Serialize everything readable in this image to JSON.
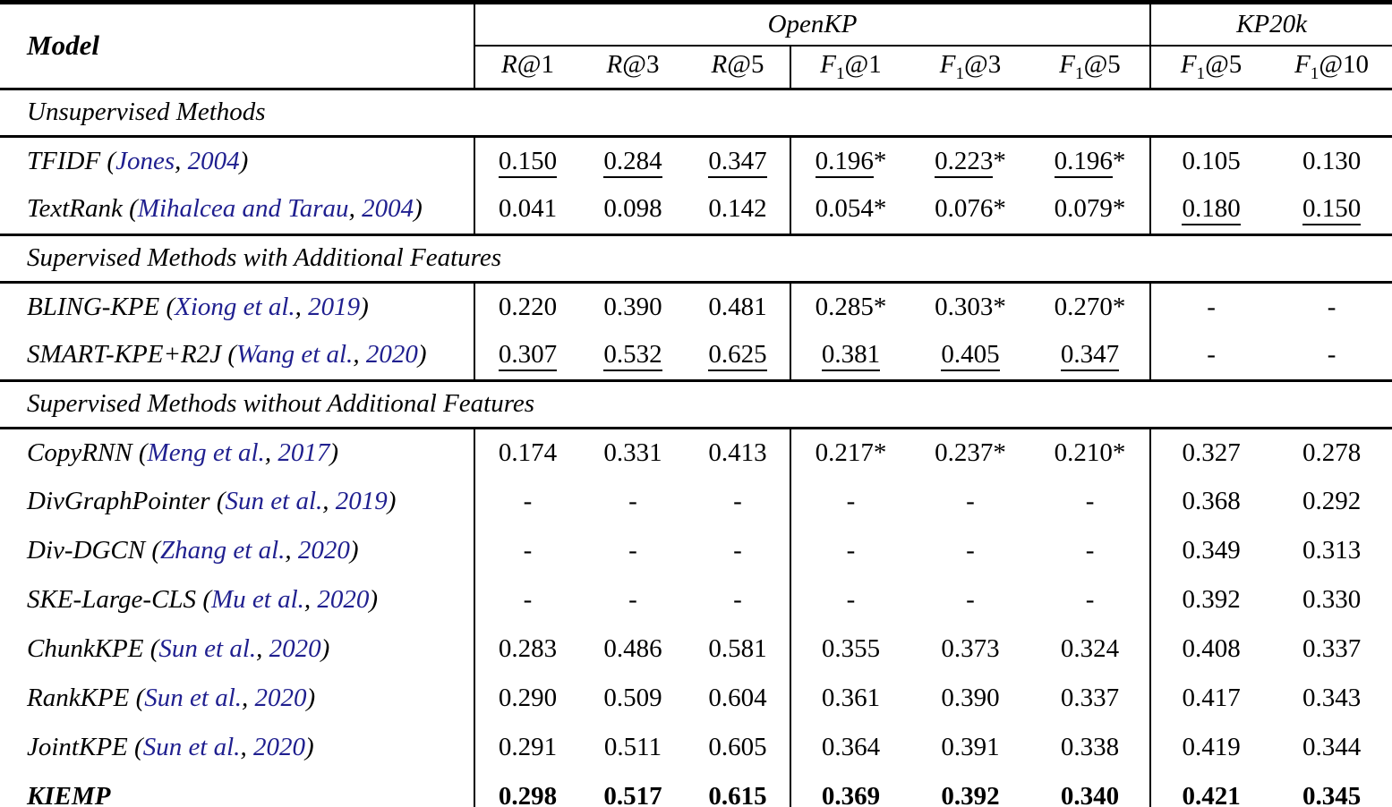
{
  "table": {
    "model_header": "Model",
    "groups": [
      {
        "label": "OpenKP"
      },
      {
        "label": "KP20k"
      }
    ],
    "columns": [
      {
        "letter": "R",
        "sub": "",
        "at": "@1"
      },
      {
        "letter": "R",
        "sub": "",
        "at": "@3"
      },
      {
        "letter": "R",
        "sub": "",
        "at": "@5"
      },
      {
        "letter": "F",
        "sub": "1",
        "at": "@1"
      },
      {
        "letter": "F",
        "sub": "1",
        "at": "@3"
      },
      {
        "letter": "F",
        "sub": "1",
        "at": "@5"
      },
      {
        "letter": "F",
        "sub": "1",
        "at": "@5"
      },
      {
        "letter": "F",
        "sub": "1",
        "at": "@10"
      }
    ],
    "colors": {
      "citation_link": "#1f1f8f",
      "text": "#000000",
      "rule": "#000000"
    },
    "sections": [
      {
        "title": "Unsupervised Methods",
        "rows": [
          {
            "name": "TFIDF",
            "cite_open": " (",
            "author": "Jones",
            "sep": ", ",
            "year": "2004",
            "cite_close": ")",
            "bold": false,
            "cells": [
              {
                "t": "0.150",
                "s": "",
                "u": true
              },
              {
                "t": "0.284",
                "s": "",
                "u": true
              },
              {
                "t": "0.347",
                "s": "",
                "u": true
              },
              {
                "t": "0.196",
                "s": "*",
                "u": true
              },
              {
                "t": "0.223",
                "s": "*",
                "u": true
              },
              {
                "t": "0.196",
                "s": "*",
                "u": true
              },
              {
                "t": "0.105",
                "s": "",
                "u": false
              },
              {
                "t": "0.130",
                "s": "",
                "u": false
              }
            ]
          },
          {
            "name": "TextRank",
            "cite_open": " (",
            "author": "Mihalcea and Tarau",
            "sep": ", ",
            "year": "2004",
            "cite_close": ")",
            "bold": false,
            "cells": [
              {
                "t": "0.041",
                "s": "",
                "u": false
              },
              {
                "t": "0.098",
                "s": "",
                "u": false
              },
              {
                "t": "0.142",
                "s": "",
                "u": false
              },
              {
                "t": "0.054",
                "s": "*",
                "u": false
              },
              {
                "t": "0.076",
                "s": "*",
                "u": false
              },
              {
                "t": "0.079",
                "s": "*",
                "u": false
              },
              {
                "t": "0.180",
                "s": "",
                "u": true
              },
              {
                "t": "0.150",
                "s": "",
                "u": true
              }
            ]
          }
        ]
      },
      {
        "title": "Supervised Methods with Additional Features",
        "rows": [
          {
            "name": "BLING-KPE",
            "cite_open": " (",
            "author": "Xiong et al.",
            "sep": ", ",
            "year": "2019",
            "cite_close": ")",
            "bold": false,
            "cells": [
              {
                "t": "0.220",
                "s": "",
                "u": false
              },
              {
                "t": "0.390",
                "s": "",
                "u": false
              },
              {
                "t": "0.481",
                "s": "",
                "u": false
              },
              {
                "t": "0.285",
                "s": "*",
                "u": false
              },
              {
                "t": "0.303",
                "s": "*",
                "u": false
              },
              {
                "t": "0.270",
                "s": "*",
                "u": false
              },
              {
                "t": "-",
                "s": "",
                "u": false
              },
              {
                "t": "-",
                "s": "",
                "u": false
              }
            ]
          },
          {
            "name": "SMART-KPE+R2J",
            "cite_open": " (",
            "author": "Wang et al.",
            "sep": ", ",
            "year": "2020",
            "cite_close": ")",
            "bold": false,
            "cells": [
              {
                "t": "0.307",
                "s": "",
                "u": true
              },
              {
                "t": "0.532",
                "s": "",
                "u": true
              },
              {
                "t": "0.625",
                "s": "",
                "u": true
              },
              {
                "t": "0.381",
                "s": "",
                "u": true
              },
              {
                "t": "0.405",
                "s": "",
                "u": true
              },
              {
                "t": "0.347",
                "s": "",
                "u": true
              },
              {
                "t": "-",
                "s": "",
                "u": false
              },
              {
                "t": "-",
                "s": "",
                "u": false
              }
            ]
          }
        ]
      },
      {
        "title": "Supervised Methods without Additional Features",
        "rows": [
          {
            "name": "CopyRNN",
            "cite_open": " (",
            "author": "Meng et al.",
            "sep": ", ",
            "year": "2017",
            "cite_close": ")",
            "bold": false,
            "cells": [
              {
                "t": "0.174",
                "s": "",
                "u": false
              },
              {
                "t": "0.331",
                "s": "",
                "u": false
              },
              {
                "t": "0.413",
                "s": "",
                "u": false
              },
              {
                "t": "0.217",
                "s": "*",
                "u": false
              },
              {
                "t": "0.237",
                "s": "*",
                "u": false
              },
              {
                "t": "0.210",
                "s": "*",
                "u": false
              },
              {
                "t": "0.327",
                "s": "",
                "u": false
              },
              {
                "t": "0.278",
                "s": "",
                "u": false
              }
            ]
          },
          {
            "name": "DivGraphPointer",
            "cite_open": " (",
            "author": "Sun et al.",
            "sep": ", ",
            "year": "2019",
            "cite_close": ")",
            "bold": false,
            "cells": [
              {
                "t": "-",
                "s": "",
                "u": false
              },
              {
                "t": "-",
                "s": "",
                "u": false
              },
              {
                "t": "-",
                "s": "",
                "u": false
              },
              {
                "t": "-",
                "s": "",
                "u": false
              },
              {
                "t": "-",
                "s": "",
                "u": false
              },
              {
                "t": "-",
                "s": "",
                "u": false
              },
              {
                "t": "0.368",
                "s": "",
                "u": false
              },
              {
                "t": "0.292",
                "s": "",
                "u": false
              }
            ]
          },
          {
            "name": "Div-DGCN",
            "cite_open": " (",
            "author": "Zhang et al.",
            "sep": ", ",
            "year": "2020",
            "cite_close": ")",
            "bold": false,
            "cells": [
              {
                "t": "-",
                "s": "",
                "u": false
              },
              {
                "t": "-",
                "s": "",
                "u": false
              },
              {
                "t": "-",
                "s": "",
                "u": false
              },
              {
                "t": "-",
                "s": "",
                "u": false
              },
              {
                "t": "-",
                "s": "",
                "u": false
              },
              {
                "t": "-",
                "s": "",
                "u": false
              },
              {
                "t": "0.349",
                "s": "",
                "u": false
              },
              {
                "t": "0.313",
                "s": "",
                "u": false
              }
            ]
          },
          {
            "name": "SKE-Large-CLS",
            "cite_open": " (",
            "author": "Mu et al.",
            "sep": ", ",
            "year": "2020",
            "cite_close": ")",
            "bold": false,
            "cells": [
              {
                "t": "-",
                "s": "",
                "u": false
              },
              {
                "t": "-",
                "s": "",
                "u": false
              },
              {
                "t": "-",
                "s": "",
                "u": false
              },
              {
                "t": "-",
                "s": "",
                "u": false
              },
              {
                "t": "-",
                "s": "",
                "u": false
              },
              {
                "t": "-",
                "s": "",
                "u": false
              },
              {
                "t": "0.392",
                "s": "",
                "u": false
              },
              {
                "t": "0.330",
                "s": "",
                "u": false
              }
            ]
          },
          {
            "name": "ChunkKPE",
            "cite_open": " (",
            "author": "Sun et al.",
            "sep": ", ",
            "year": "2020",
            "cite_close": ")",
            "bold": false,
            "cells": [
              {
                "t": "0.283",
                "s": "",
                "u": false
              },
              {
                "t": "0.486",
                "s": "",
                "u": false
              },
              {
                "t": "0.581",
                "s": "",
                "u": false
              },
              {
                "t": "0.355",
                "s": "",
                "u": false
              },
              {
                "t": "0.373",
                "s": "",
                "u": false
              },
              {
                "t": "0.324",
                "s": "",
                "u": false
              },
              {
                "t": "0.408",
                "s": "",
                "u": false
              },
              {
                "t": "0.337",
                "s": "",
                "u": false
              }
            ]
          },
          {
            "name": "RankKPE",
            "cite_open": " (",
            "author": "Sun et al.",
            "sep": ", ",
            "year": "2020",
            "cite_close": ")",
            "bold": false,
            "cells": [
              {
                "t": "0.290",
                "s": "",
                "u": false
              },
              {
                "t": "0.509",
                "s": "",
                "u": false
              },
              {
                "t": "0.604",
                "s": "",
                "u": false
              },
              {
                "t": "0.361",
                "s": "",
                "u": false
              },
              {
                "t": "0.390",
                "s": "",
                "u": false
              },
              {
                "t": "0.337",
                "s": "",
                "u": false
              },
              {
                "t": "0.417",
                "s": "",
                "u": false
              },
              {
                "t": "0.343",
                "s": "",
                "u": false
              }
            ]
          },
          {
            "name": "JointKPE",
            "cite_open": " (",
            "author": "Sun et al.",
            "sep": ", ",
            "year": "2020",
            "cite_close": ")",
            "bold": false,
            "cells": [
              {
                "t": "0.291",
                "s": "",
                "u": false
              },
              {
                "t": "0.511",
                "s": "",
                "u": false
              },
              {
                "t": "0.605",
                "s": "",
                "u": false
              },
              {
                "t": "0.364",
                "s": "",
                "u": false
              },
              {
                "t": "0.391",
                "s": "",
                "u": false
              },
              {
                "t": "0.338",
                "s": "",
                "u": false
              },
              {
                "t": "0.419",
                "s": "",
                "u": false
              },
              {
                "t": "0.344",
                "s": "",
                "u": false
              }
            ]
          },
          {
            "name": "KIEMP",
            "cite_open": "",
            "author": "",
            "sep": "",
            "year": "",
            "cite_close": "",
            "bold": true,
            "cells": [
              {
                "t": "0.298",
                "s": "",
                "u": false
              },
              {
                "t": "0.517",
                "s": "",
                "u": false
              },
              {
                "t": "0.615",
                "s": "",
                "u": false
              },
              {
                "t": "0.369",
                "s": "",
                "u": false
              },
              {
                "t": "0.392",
                "s": "",
                "u": false
              },
              {
                "t": "0.340",
                "s": "",
                "u": false
              },
              {
                "t": "0.421",
                "s": "",
                "u": false
              },
              {
                "t": "0.345",
                "s": "",
                "u": false
              }
            ]
          }
        ]
      }
    ]
  }
}
